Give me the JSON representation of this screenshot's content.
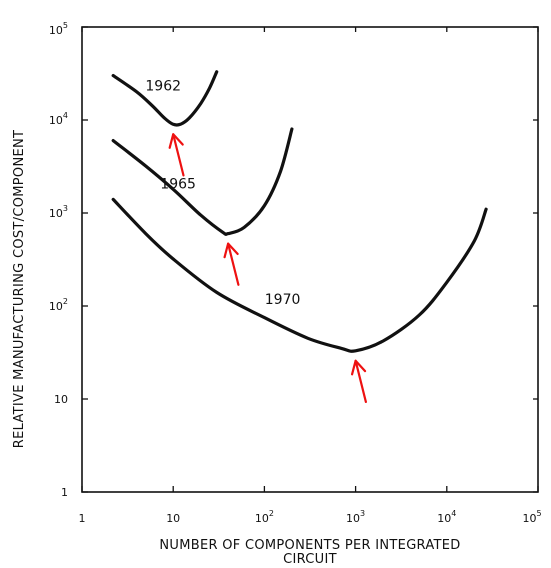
{
  "chart_data": {
    "type": "line",
    "title": "",
    "xlabel": [
      "NUMBER OF COMPONENTS PER INTEGRATED",
      "CIRCUIT"
    ],
    "ylabel": "RELATIVE MANUFACTURING COST/COMPONENT",
    "xscale": "log",
    "yscale": "log",
    "xlim": [
      1,
      100000
    ],
    "ylim": [
      1,
      100000
    ],
    "grid": false,
    "x_ticks": [
      {
        "value": 1,
        "base": "1",
        "exp": ""
      },
      {
        "value": 10,
        "base": "10",
        "exp": ""
      },
      {
        "value": 100,
        "base": "10",
        "exp": "2"
      },
      {
        "value": 1000,
        "base": "10",
        "exp": "3"
      },
      {
        "value": 10000,
        "base": "10",
        "exp": "4"
      },
      {
        "value": 100000,
        "base": "10",
        "exp": "5"
      }
    ],
    "y_ticks": [
      {
        "value": 1,
        "base": "1",
        "exp": ""
      },
      {
        "value": 10,
        "base": "10",
        "exp": ""
      },
      {
        "value": 100,
        "base": "10",
        "exp": "2"
      },
      {
        "value": 1000,
        "base": "10",
        "exp": "3"
      },
      {
        "value": 10000,
        "base": "10",
        "exp": "4"
      },
      {
        "value": 100000,
        "base": "10",
        "exp": "5"
      }
    ],
    "series": [
      {
        "name": "1962",
        "x": [
          2.2,
          4,
          6,
          8,
          10,
          12,
          15,
          20,
          25,
          30
        ],
        "y": [
          30000,
          20000,
          14000,
          10500,
          9000,
          9000,
          10500,
          15000,
          22000,
          33000
        ],
        "minimum": {
          "x": 10,
          "y": 9000
        }
      },
      {
        "name": "1965",
        "x": [
          2.2,
          5,
          10,
          20,
          35,
          40,
          60,
          100,
          150,
          200
        ],
        "y": [
          6000,
          3200,
          1800,
          950,
          620,
          600,
          700,
          1200,
          2800,
          8000
        ],
        "minimum": {
          "x": 40,
          "y": 600
        }
      },
      {
        "name": "1970",
        "x": [
          2.2,
          5,
          10,
          30,
          100,
          300,
          700,
          1000,
          2000,
          5000,
          10000,
          20000,
          27000
        ],
        "y": [
          1400,
          600,
          320,
          140,
          75,
          45,
          35,
          33,
          42,
          80,
          180,
          500,
          1100
        ],
        "minimum": {
          "x": 1000,
          "y": 33
        }
      }
    ],
    "annotations": [
      {
        "type": "arrow",
        "color": "#ee1111",
        "target_series": "1962"
      },
      {
        "type": "arrow",
        "color": "#ee1111",
        "target_series": "1965"
      },
      {
        "type": "arrow",
        "color": "#ee1111",
        "target_series": "1970"
      }
    ]
  }
}
